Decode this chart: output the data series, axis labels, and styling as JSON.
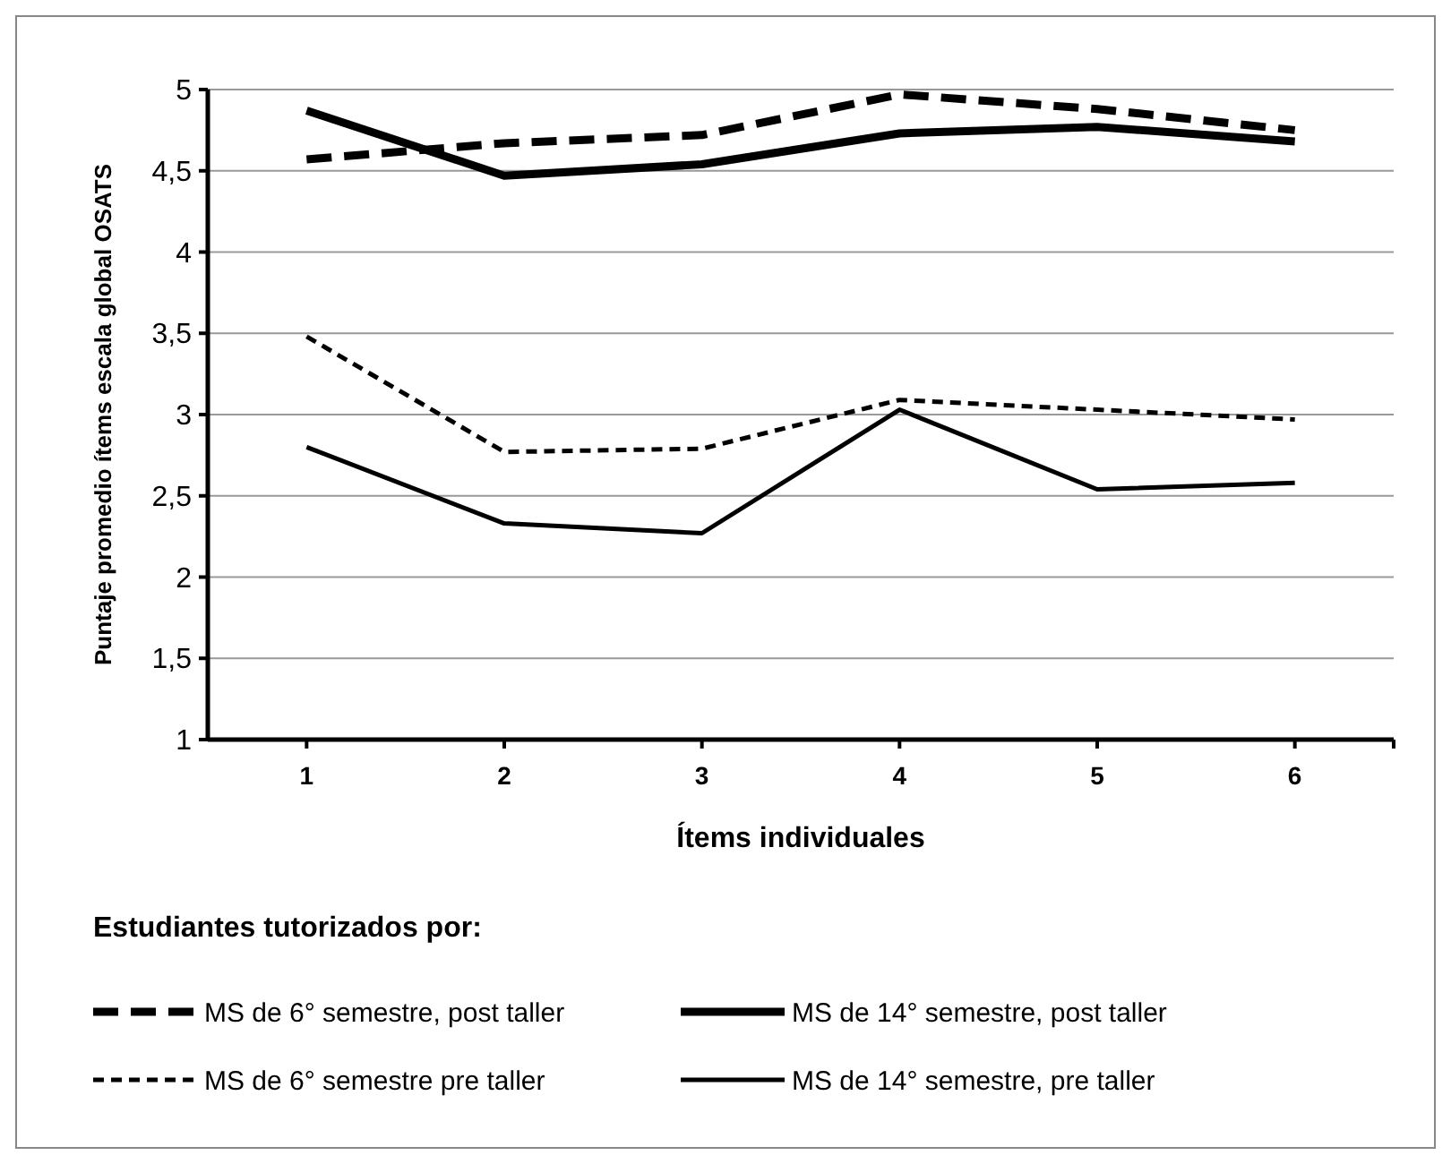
{
  "chart_data": {
    "type": "line",
    "xlabel": "Ítems individuales",
    "ylabel": "Puntaje promedio ítems escala global OSATS",
    "legend_title": "Estudiantes tutorizados por:",
    "categories": [
      "1",
      "2",
      "3",
      "4",
      "5",
      "6"
    ],
    "series": [
      {
        "name": "MS de 6° semestre, post taller",
        "color": "#000000",
        "line_style": "dashed",
        "values": [
          4.57,
          4.67,
          4.72,
          4.97,
          4.88,
          4.75
        ]
      },
      {
        "name": "MS de 14° semestre, post taller",
        "color": "#000000",
        "line_style": "solid",
        "values": [
          4.87,
          4.47,
          4.54,
          4.73,
          4.77,
          4.68
        ]
      },
      {
        "name": "MS de 6° semestre pre taller",
        "color": "#000000",
        "line_style": "dashed",
        "values": [
          3.48,
          2.77,
          2.79,
          3.09,
          3.03,
          2.97
        ]
      },
      {
        "name": "MS de 14° semestre, pre taller",
        "color": "#000000",
        "line_style": "solid",
        "values": [
          2.8,
          2.33,
          2.27,
          3.03,
          2.54,
          2.58
        ]
      }
    ],
    "ylim": [
      1,
      5
    ],
    "yticks": [
      1,
      {
        "value": 1.5,
        "label": "1,5"
      },
      2,
      {
        "value": 2.5,
        "label": "2,5"
      },
      3,
      {
        "value": 3.5,
        "label": "3,5"
      },
      4,
      {
        "value": 4.5,
        "label": "4,5"
      },
      5
    ],
    "grid": "y",
    "legend": "bottom",
    "marker": "none"
  }
}
